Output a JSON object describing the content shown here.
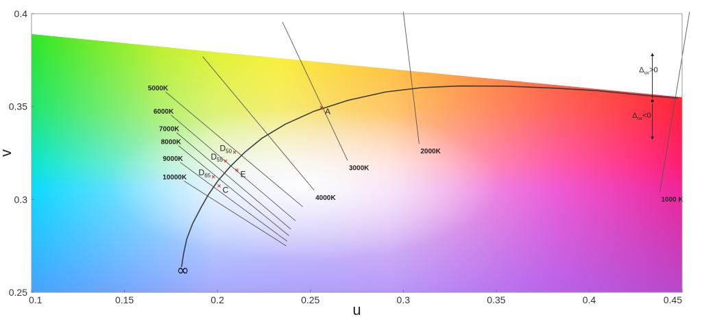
{
  "chart_data": {
    "type": "scatter",
    "title": "",
    "xlabel": "u",
    "ylabel": "v",
    "xlim": [
      0.1,
      0.45
    ],
    "ylim": [
      0.25,
      0.4
    ],
    "x_ticks": [
      "0.1",
      "0.15",
      "0.2",
      "0.25",
      "0.3",
      "0.35",
      "0.4",
      "0.45"
    ],
    "y_ticks": [
      "0.25",
      "0.3",
      "0.35",
      "0.4"
    ],
    "spectral_locus_edge": [
      [
        0.1,
        0.389
      ],
      [
        0.45,
        0.355
      ]
    ],
    "planckian_locus": [
      [
        0.1807,
        0.2637
      ],
      [
        0.1818,
        0.2708
      ],
      [
        0.1835,
        0.2787
      ],
      [
        0.1867,
        0.2871
      ],
      [
        0.1913,
        0.2959
      ],
      [
        0.1952,
        0.3027
      ],
      [
        0.2003,
        0.3101
      ],
      [
        0.2067,
        0.3175
      ],
      [
        0.2147,
        0.3254
      ],
      [
        0.224,
        0.333
      ],
      [
        0.2365,
        0.3405
      ],
      [
        0.252,
        0.3475
      ],
      [
        0.27,
        0.3533
      ],
      [
        0.2906,
        0.3579
      ],
      [
        0.31,
        0.3602
      ],
      [
        0.33,
        0.3611
      ],
      [
        0.355,
        0.361
      ],
      [
        0.38,
        0.36
      ],
      [
        0.405,
        0.3585
      ],
      [
        0.43,
        0.356
      ],
      [
        0.448,
        0.3545
      ]
    ],
    "infinity_label": "∞",
    "isotherms": [
      {
        "label": "10000K",
        "from": [
          0.185,
          0.304
        ],
        "to": [
          0.237,
          0.275
        ]
      },
      {
        "label": "9000K",
        "from": [
          0.187,
          0.307
        ],
        "to": [
          0.2375,
          0.2775
        ]
      },
      {
        "label": "8000K",
        "from": [
          0.188,
          0.311
        ],
        "to": [
          0.2385,
          0.2805
        ]
      },
      {
        "label": "7000K",
        "from": [
          0.19,
          0.316
        ],
        "to": [
          0.2395,
          0.284
        ]
      },
      {
        "label": "6000K",
        "from": [
          0.195,
          0.323
        ],
        "to": [
          0.242,
          0.2885
        ]
      },
      {
        "label": "5000K",
        "from": [
          0.2,
          0.332
        ],
        "to": [
          0.246,
          0.296
        ]
      },
      {
        "label": "4000K",
        "from": [
          0.22,
          0.3435
        ],
        "to": [
          0.252,
          0.305
        ]
      },
      {
        "label": "3000K",
        "from": [
          0.255,
          0.354
        ],
        "to": [
          0.27,
          0.321
        ]
      },
      {
        "label": "2000K",
        "from": [
          0.303,
          0.36
        ],
        "to": [
          0.3085,
          0.33
        ]
      },
      {
        "label": "1000 K",
        "from": [
          0.448,
          0.36
        ],
        "to": [
          0.438,
          0.304
        ]
      }
    ],
    "isotherm_extents": [
      {
        "label": "10000K",
        "from": [
          0.182,
          0.31
        ]
      },
      {
        "label": "9000K",
        "from": [
          0.18,
          0.32
        ]
      },
      {
        "label": "8000K",
        "from": [
          0.179,
          0.329
        ]
      },
      {
        "label": "7000K",
        "from": [
          0.178,
          0.336
        ]
      },
      {
        "label": "6000K",
        "from": [
          0.175,
          0.3455
        ]
      },
      {
        "label": "5000K",
        "from": [
          0.172,
          0.358
        ]
      },
      {
        "label": "4000K",
        "from": [
          0.192,
          0.377
        ]
      },
      {
        "label": "3000K",
        "from": [
          0.235,
          0.3955
        ]
      },
      {
        "label": "2000K",
        "from": [
          0.3,
          0.401
        ]
      },
      {
        "label": "1000 K",
        "from": [
          0.454,
          0.401
        ]
      }
    ],
    "points": [
      {
        "label": "A",
        "sub": "",
        "u": 0.256,
        "v": 0.3495
      },
      {
        "label": "D",
        "sub": "50",
        "u": 0.2092,
        "v": 0.3254
      },
      {
        "label": "D",
        "sub": "55",
        "u": 0.2044,
        "v": 0.3207
      },
      {
        "label": "E",
        "sub": "",
        "u": 0.2105,
        "v": 0.3158
      },
      {
        "label": "D",
        "sub": "65",
        "u": 0.1978,
        "v": 0.3122
      },
      {
        "label": "C",
        "sub": "",
        "u": 0.2009,
        "v": 0.3073
      }
    ],
    "delta_uv_positive": {
      "symbol": "Δ",
      "sub": "uv",
      "text": ">0"
    },
    "delta_uv_negative": {
      "symbol": "Δ",
      "sub": "uv",
      "text": "<0"
    },
    "delta_arrows": {
      "base": [
        0.434,
        0.353
      ],
      "up_to": [
        0.434,
        0.378
      ],
      "down_to": [
        0.434,
        0.333
      ]
    }
  }
}
